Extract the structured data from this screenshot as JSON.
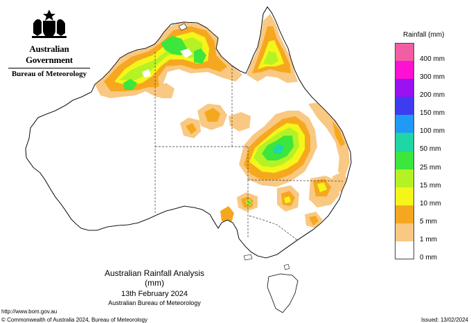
{
  "header": {
    "government": "Australian Government",
    "bureau": "Bureau of Meteorology"
  },
  "map": {
    "title": "Australian Rainfall Analysis (mm)",
    "date": "13th February 2024",
    "agency": "Australian Bureau of Meteorology"
  },
  "legend": {
    "title": "Rainfall (mm)",
    "items": [
      {
        "label": "400 mm",
        "color": "#f25ea3"
      },
      {
        "label": "300 mm",
        "color": "#ff11d4"
      },
      {
        "label": "200 mm",
        "color": "#9a12f0"
      },
      {
        "label": "150 mm",
        "color": "#3c3cf0"
      },
      {
        "label": "100 mm",
        "color": "#1f9af5"
      },
      {
        "label": "50 mm",
        "color": "#1fd6a4"
      },
      {
        "label": "25 mm",
        "color": "#3ce63c"
      },
      {
        "label": "15 mm",
        "color": "#b4f226"
      },
      {
        "label": "10 mm",
        "color": "#f5f51a"
      },
      {
        "label": "5 mm",
        "color": "#f5a81f"
      },
      {
        "label": "1 mm",
        "color": "#f9c882"
      },
      {
        "label": "0 mm",
        "color": "#ffffff"
      }
    ]
  },
  "footer": {
    "url": "http://www.bom.gov.au",
    "copyright": "© Commonwealth of Australia 2024, Bureau of Meteorology",
    "issued": "Issued: 13/02/2024"
  }
}
